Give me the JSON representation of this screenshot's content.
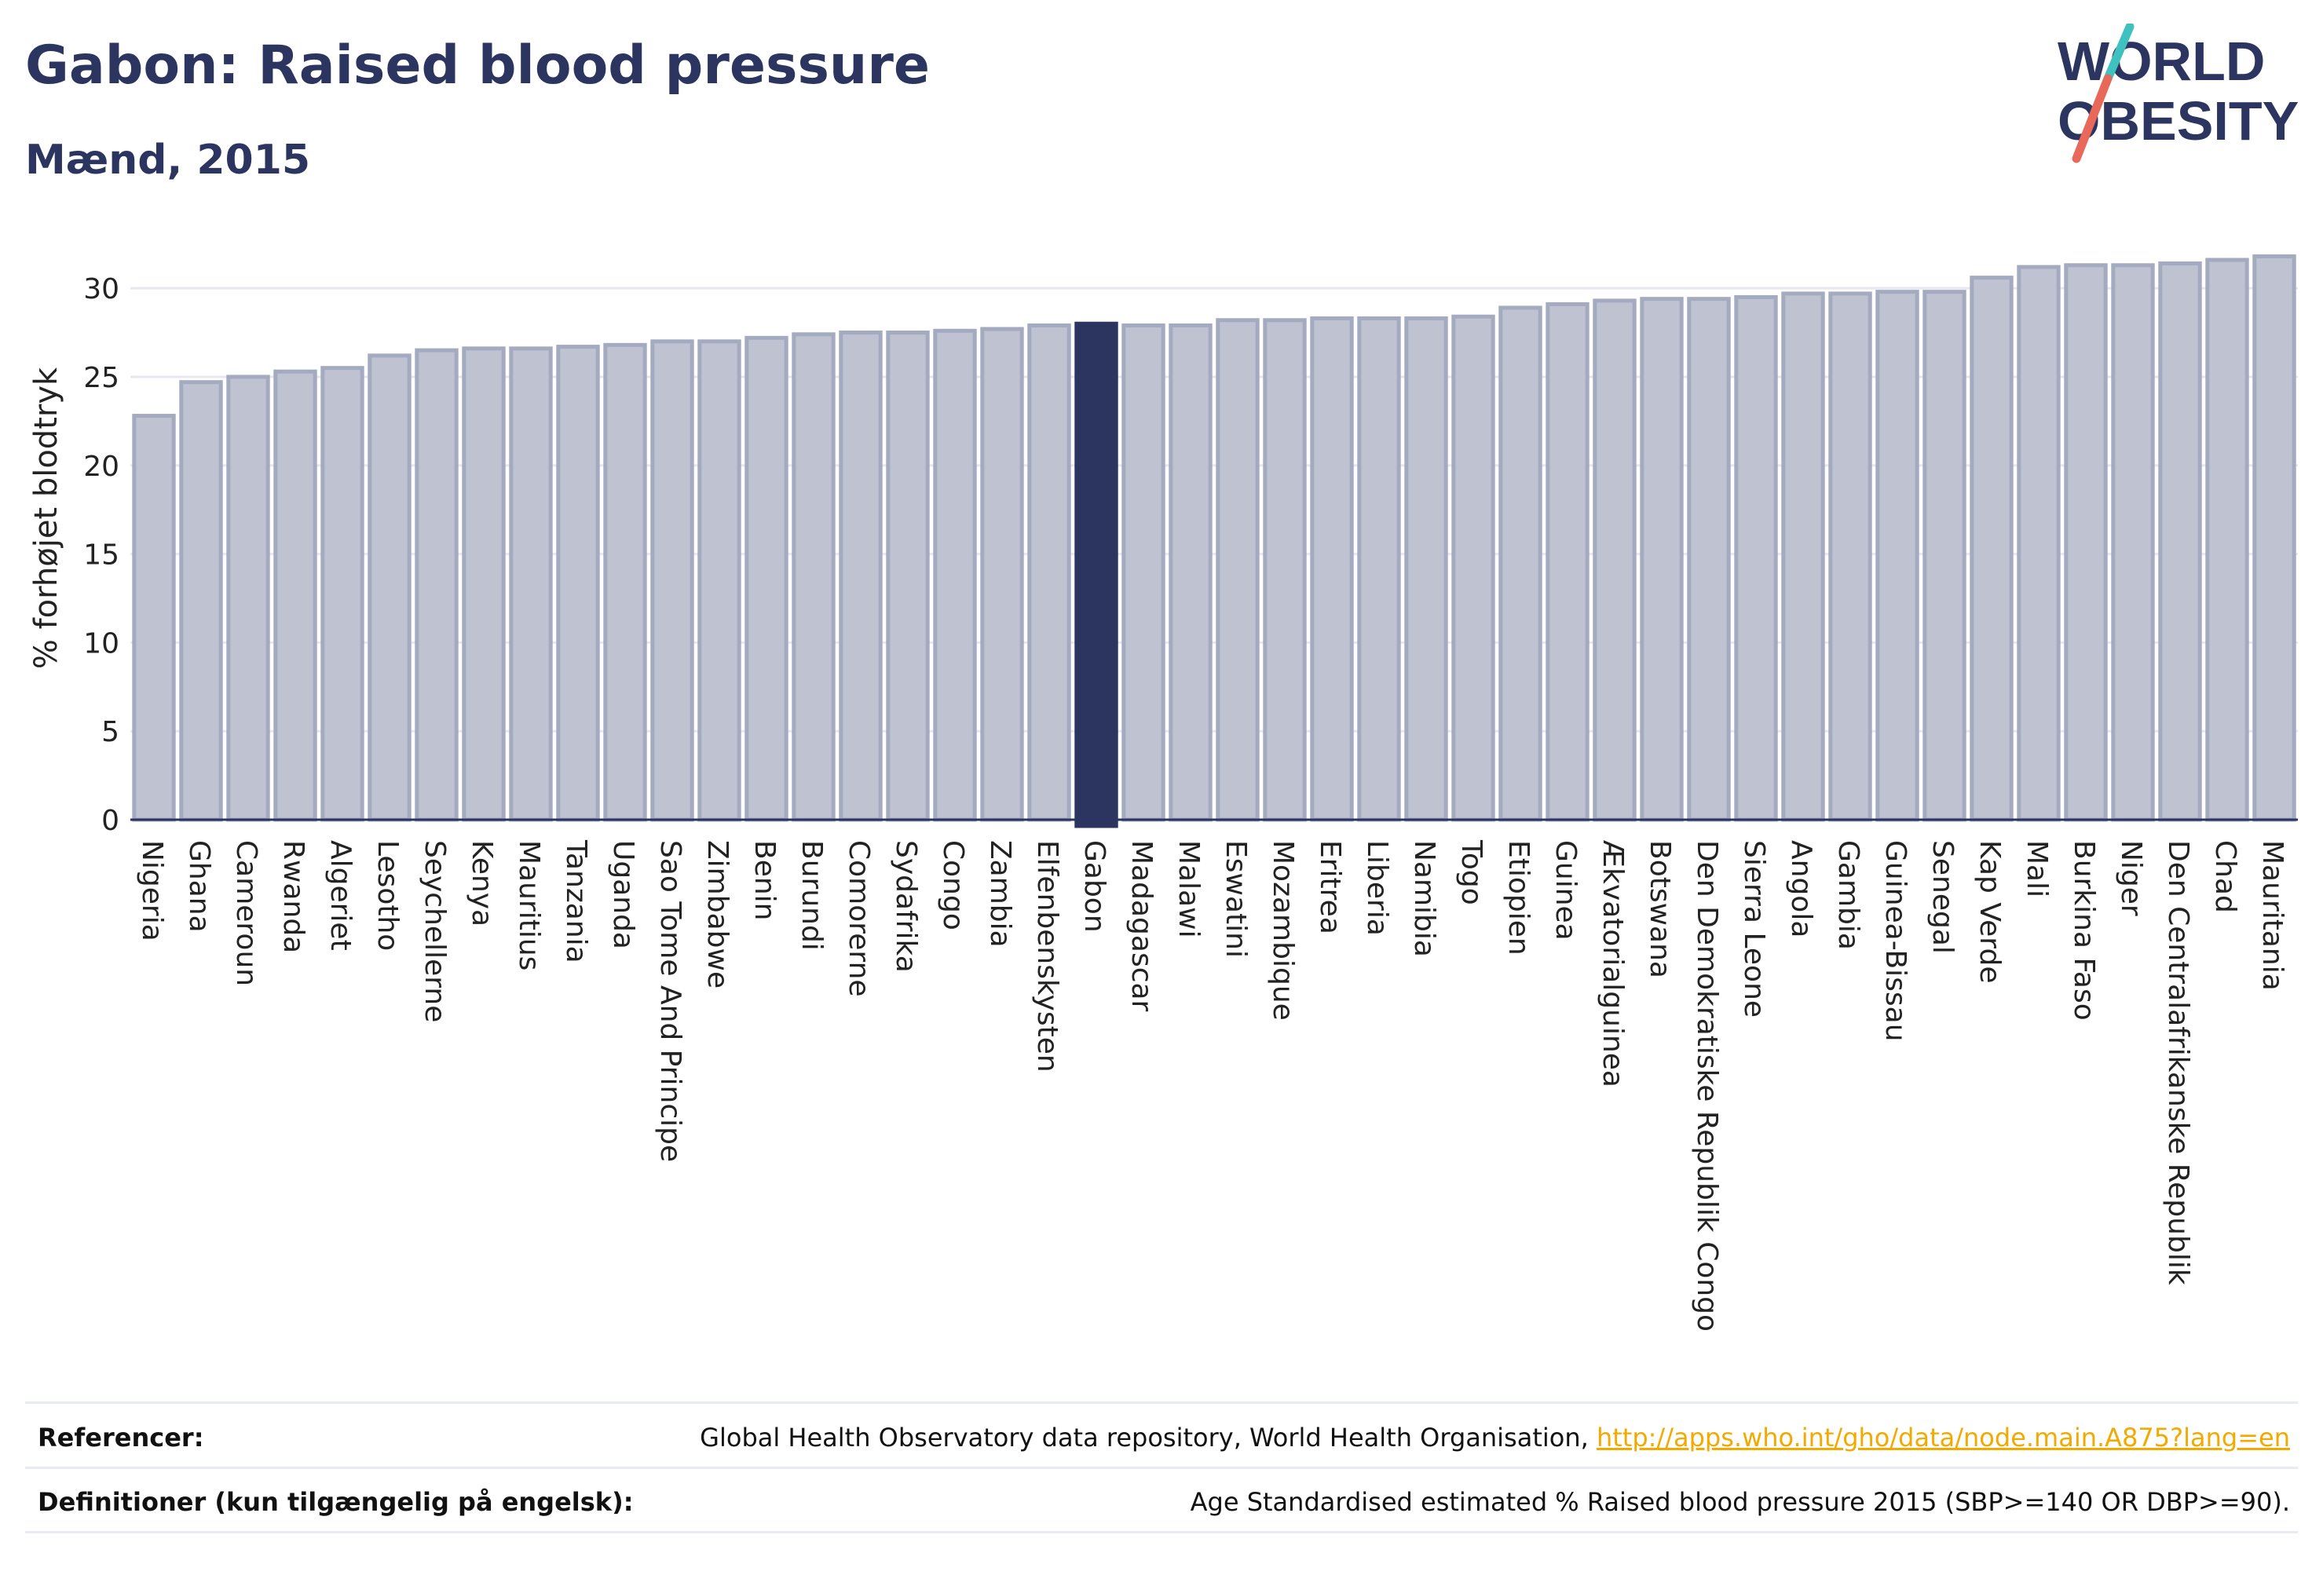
{
  "header": {
    "title": "Gabon: Raised blood pressure",
    "subtitle": "Mænd, 2015"
  },
  "logo": {
    "line1": "WORLD",
    "line2": "OBESITY",
    "colors": {
      "text": "#2b3560",
      "teal": "#3fc1c0",
      "coral": "#e8685a"
    }
  },
  "colors": {
    "bar_default": "#bfc3d1",
    "bar_default_stroke": "#a4aac0",
    "bar_highlight": "#2b3560",
    "grid": "#e6e8ef",
    "axis_text": "#222222"
  },
  "chart_data": {
    "type": "bar",
    "ylabel": "% forhøjet blodtryk",
    "ylim": [
      0,
      32
    ],
    "yticks": [
      0,
      5,
      10,
      15,
      20,
      25,
      30
    ],
    "grid": true,
    "highlight": "Gabon",
    "categories": [
      "Nigeria",
      "Ghana",
      "Cameroun",
      "Rwanda",
      "Algeriet",
      "Lesotho",
      "Seychellerne",
      "Kenya",
      "Mauritius",
      "Tanzania",
      "Uganda",
      "Sao Tome And Principe",
      "Zimbabwe",
      "Benin",
      "Burundi",
      "Comorerne",
      "Sydafrika",
      "Congo",
      "Zambia",
      "Elfenbenskysten",
      "Gabon",
      "Madagascar",
      "Malawi",
      "Eswatini",
      "Mozambique",
      "Eritrea",
      "Liberia",
      "Namibia",
      "Togo",
      "Etiopien",
      "Guinea",
      "Ækvatorialguinea",
      "Botswana",
      "Den Demokratiske Republik Congo",
      "Sierra Leone",
      "Angola",
      "Gambia",
      "Guinea-Bissau",
      "Senegal",
      "Kap Verde",
      "Mali",
      "Burkina Faso",
      "Niger",
      "Den Centralafrikanske Republik",
      "Chad",
      "Mauritania"
    ],
    "values": [
      22.8,
      24.7,
      25.0,
      25.3,
      25.5,
      26.2,
      26.5,
      26.6,
      26.6,
      26.7,
      26.8,
      27.0,
      27.0,
      27.2,
      27.4,
      27.5,
      27.5,
      27.6,
      27.7,
      27.9,
      28.0,
      27.9,
      27.9,
      28.2,
      28.2,
      28.3,
      28.3,
      28.3,
      28.4,
      28.9,
      29.1,
      29.3,
      29.4,
      29.4,
      29.5,
      29.7,
      29.7,
      29.8,
      29.8,
      30.6,
      31.2,
      31.3,
      31.3,
      31.4,
      31.6,
      31.8
    ]
  },
  "footer": {
    "references_label": "Referencer:",
    "references_text": "Global Health Observatory data repository, World Health Organisation,",
    "references_link": "http://apps.who.int/gho/data/node.main.A875?lang=en",
    "definitions_label": "Definitioner (kun tilgængelig på engelsk):",
    "definitions_text": "Age Standardised estimated % Raised blood pressure 2015 (SBP>=140 OR DBP>=90)."
  }
}
